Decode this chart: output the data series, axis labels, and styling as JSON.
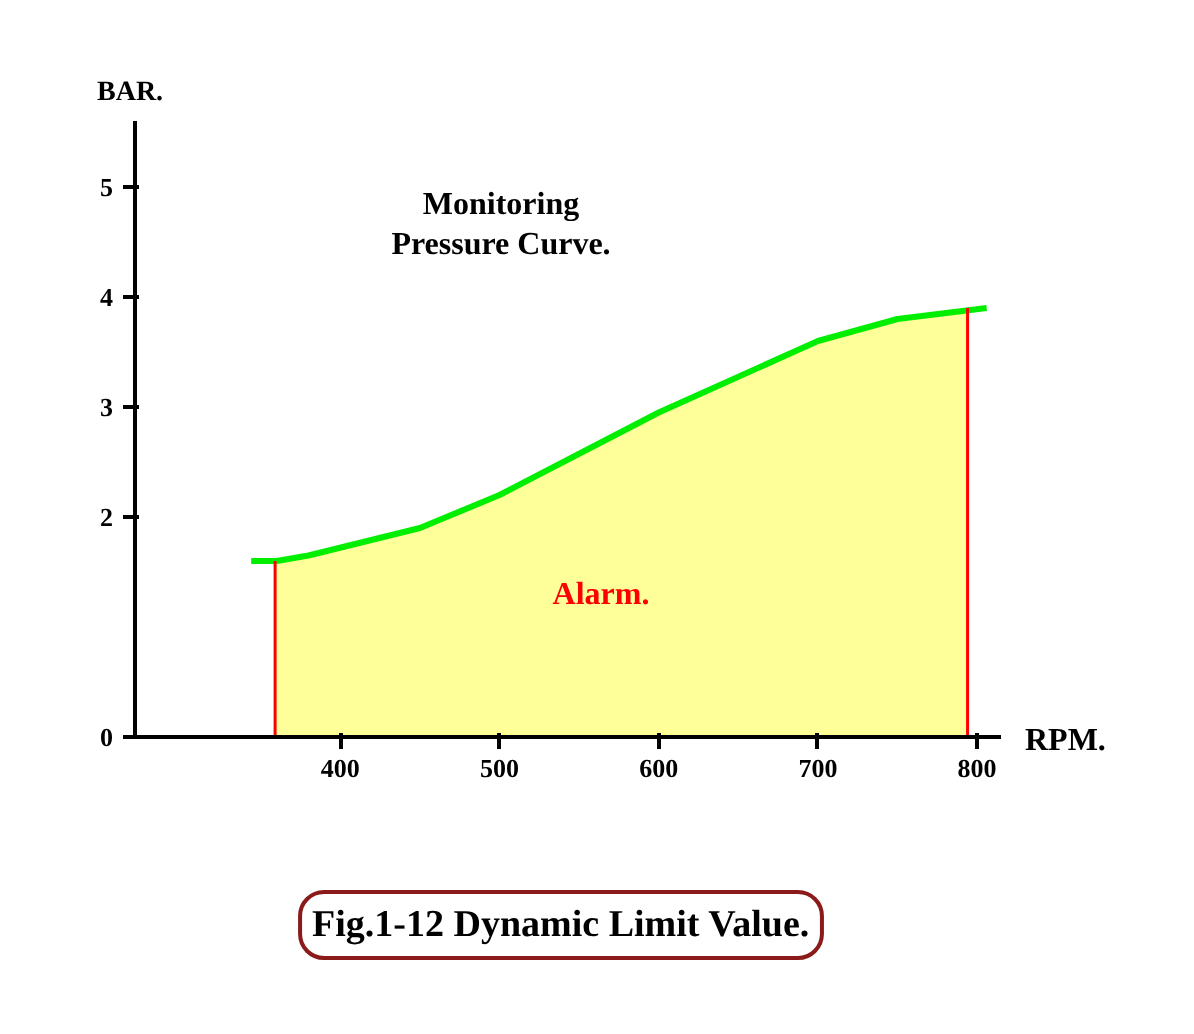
{
  "chart_data": {
    "type": "area",
    "xlabel": "RPM.",
    "ylabel": "BAR.",
    "series": [
      {
        "color": "#ffff99",
        "x": [
          359,
          380,
          450,
          500,
          600,
          700,
          750,
          794
        ],
        "values": [
          1.6,
          1.65,
          1.9,
          2.2,
          2.95,
          3.6,
          3.8,
          3.9
        ]
      },
      {
        "type": "line",
        "color": "#00ee00",
        "x": [
          344,
          360,
          380,
          450,
          500,
          600,
          700,
          750,
          806
        ],
        "values": [
          1.6,
          1.6,
          1.65,
          1.9,
          2.2,
          2.95,
          3.6,
          3.8,
          3.9
        ]
      }
    ],
    "ref_lines": [
      {
        "axis": "x",
        "value": 359,
        "color": "#ff0000"
      },
      {
        "axis": "x",
        "value": 794,
        "color": "#ff0000"
      }
    ],
    "annotations": [
      "Monitoring\nPressure Curve.",
      "Alarm.",
      "Fig.1-12 Dynamic Limit Value."
    ],
    "xlim": [
      271,
      815
    ],
    "ylim": [
      0,
      5.6
    ],
    "xticks": [
      400,
      500,
      600,
      700,
      800
    ],
    "yticks": [
      0,
      2,
      3,
      4,
      5
    ],
    "grid": false
  }
}
